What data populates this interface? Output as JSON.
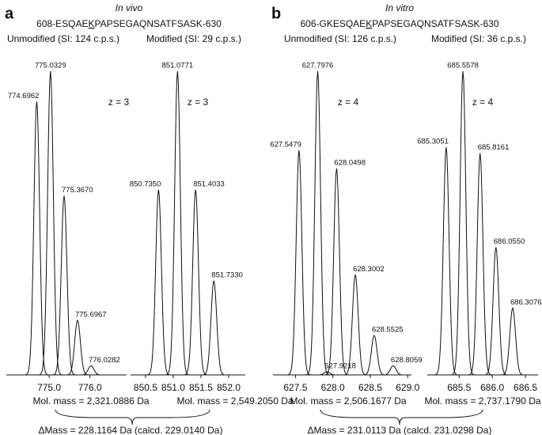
{
  "panels": [
    {
      "label": "a",
      "condition": "In vivo",
      "peptide": {
        "prefix": "608-ESQAE",
        "site": "K",
        "suffix": "PAPSEGAQNSATFSASK-630"
      },
      "delta_mass": "ΔMass = 228.1164 Da (calcd. 229.0140 Da)"
    },
    {
      "label": "b",
      "condition": "In vitro",
      "peptide": {
        "prefix": "606-GKESQAE",
        "site": "K",
        "suffix": "PAPSEGAQNSATFSASK-630"
      },
      "delta_mass": "ΔMass = 231.0113 Da (calcd. 231.0298 Da)"
    }
  ],
  "chart_data": [
    {
      "type": "spectrum",
      "title": "Unmodified (SI: 124 c.p.s.)",
      "annotation": "z = 3",
      "mol_mass": "Mol. mass = 2,321.0886 Da",
      "x": [
        774.6962,
        775.0329,
        775.367,
        775.6967,
        776.0282
      ],
      "values": [
        90,
        100,
        59,
        18,
        3
      ],
      "peak_labels": [
        "774.6962",
        "775.0329",
        "775.3670",
        "775.6967",
        "776.0282"
      ],
      "xlim": [
        773.95,
        776.9
      ],
      "xticks": [
        {
          "value": 775,
          "label": "775.0"
        },
        {
          "value": 776,
          "label": "776.0"
        }
      ]
    },
    {
      "type": "spectrum",
      "title": "Modified (SI: 29 c.p.s.)",
      "annotation": "z = 3",
      "mol_mass": "Mol. mass = 2,549.2050 Da",
      "x": [
        850.735,
        851.0771,
        851.4033,
        851.733
      ],
      "values": [
        61,
        100,
        61,
        31
      ],
      "peak_labels": [
        "850.7350",
        "851.0771",
        "851.4033",
        "851.7330"
      ],
      "xlim": [
        850.23,
        852.3
      ],
      "xticks": [
        {
          "value": 850.5,
          "label": "850.5"
        },
        {
          "value": 851,
          "label": "851.0"
        },
        {
          "value": 851.5,
          "label": "851.5"
        },
        {
          "value": 852,
          "label": "852.0"
        }
      ]
    },
    {
      "type": "spectrum",
      "title": "Unmodified (SI: 126 c.p.s.)",
      "annotation": "z = 4",
      "mol_mass": "Mol. mass = 2,506.1677 Da",
      "x": [
        627.5479,
        627.7976,
        627.9218,
        628.0498,
        628.3002,
        628.5525,
        628.8059
      ],
      "values": [
        74,
        100,
        1,
        68,
        33,
        13,
        3
      ],
      "peak_labels": [
        "627.5479",
        "627.7976",
        "627.9218",
        "628.0498",
        "628.3002",
        "628.5525",
        "628.8059"
      ],
      "xlim": [
        627.2,
        629.05
      ],
      "xticks": [
        {
          "value": 627.5,
          "label": "627.5"
        },
        {
          "value": 628,
          "label": "628.0"
        },
        {
          "value": 628.5,
          "label": "628.5"
        },
        {
          "value": 629,
          "label": "629.0"
        }
      ]
    },
    {
      "type": "spectrum",
      "title": "Modified (SI: 36 c.p.s.)",
      "annotation": "z = 4",
      "mol_mass": "Mol. mass = 2,737.1790 Da",
      "x": [
        685.3051,
        685.5578,
        685.8161,
        686.055,
        686.3076
      ],
      "values": [
        75,
        100,
        73,
        42,
        22
      ],
      "peak_labels": [
        "685.3051",
        "685.5578",
        "685.8161",
        "686.0550",
        "686.3076"
      ],
      "xlim": [
        685.02,
        686.69
      ],
      "xticks": [
        {
          "value": 685.5,
          "label": "685.5"
        },
        {
          "value": 686,
          "label": "686.0"
        },
        {
          "value": 686.5,
          "label": "686.5"
        }
      ]
    }
  ]
}
